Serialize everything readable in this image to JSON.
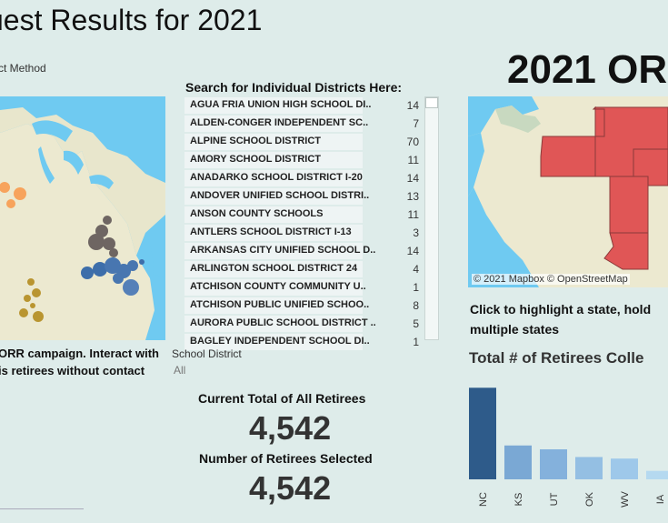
{
  "header": {
    "title": "uest Results for 2021",
    "contact_method_label": "ct Method"
  },
  "left_panel": {
    "caption_line1": "ORR campaign. Interact with",
    "caption_line2": "is retirees without contact"
  },
  "district_search": {
    "title": "Search for Individual Districts Here:",
    "filter_label": "School District",
    "filter_value": "All",
    "rows": [
      {
        "name": "AGUA FRIA UNION HIGH SCHOOL DI..",
        "count": "14"
      },
      {
        "name": "ALDEN-CONGER INDEPENDENT SC..",
        "count": "7"
      },
      {
        "name": "ALPINE SCHOOL DISTRICT",
        "count": "70"
      },
      {
        "name": "AMORY SCHOOL DISTRICT",
        "count": "11"
      },
      {
        "name": "ANADARKO SCHOOL DISTRICT I-20",
        "count": "14"
      },
      {
        "name": "ANDOVER UNIFIED SCHOOL DISTRI..",
        "count": "13"
      },
      {
        "name": "ANSON COUNTY SCHOOLS",
        "count": "11"
      },
      {
        "name": "ANTLERS SCHOOL DISTRICT I-13",
        "count": "3"
      },
      {
        "name": "ARKANSAS CITY UNIFIED SCHOOL D..",
        "count": "14"
      },
      {
        "name": "ARLINGTON SCHOOL DISTRICT 24",
        "count": "4"
      },
      {
        "name": "ATCHISON COUNTY COMMUNITY U..",
        "count": "1"
      },
      {
        "name": "ATCHISON PUBLIC UNIFIED SCHOO..",
        "count": "8"
      },
      {
        "name": "AURORA PUBLIC SCHOOL DISTRICT ..",
        "count": "5"
      },
      {
        "name": "BAGLEY INDEPENDENT SCHOOL DI..",
        "count": "1"
      }
    ]
  },
  "totals": {
    "total_label": "Current Total of All Retirees",
    "total_value": "4,542",
    "selected_label": "Number of Retirees Selected",
    "selected_value": "4,542"
  },
  "right_panel": {
    "title": "2021 OR",
    "map_credit": "© 2021 Mapbox © OpenStreetMap",
    "hint_line1": "Click to highlight a state, hold",
    "hint_line2": "multiple states",
    "bar_title": "Total # of Retirees Colle"
  },
  "chart_data": {
    "type": "bar",
    "categories": [
      "NC",
      "KS",
      "UT",
      "OK",
      "WV",
      "IA"
    ],
    "values": [
      1190,
      440,
      390,
      290,
      270,
      110
    ],
    "colors": [
      "#2e5b8a",
      "#7aa8d4",
      "#84b1dc",
      "#94bfe3",
      "#9ec8ea",
      "#b5d9f0"
    ],
    "ylim": [
      0,
      1300
    ]
  },
  "colors": {
    "water": "#6fcaf1",
    "land": "#ece9d0",
    "highlight_state": "#e05656"
  }
}
